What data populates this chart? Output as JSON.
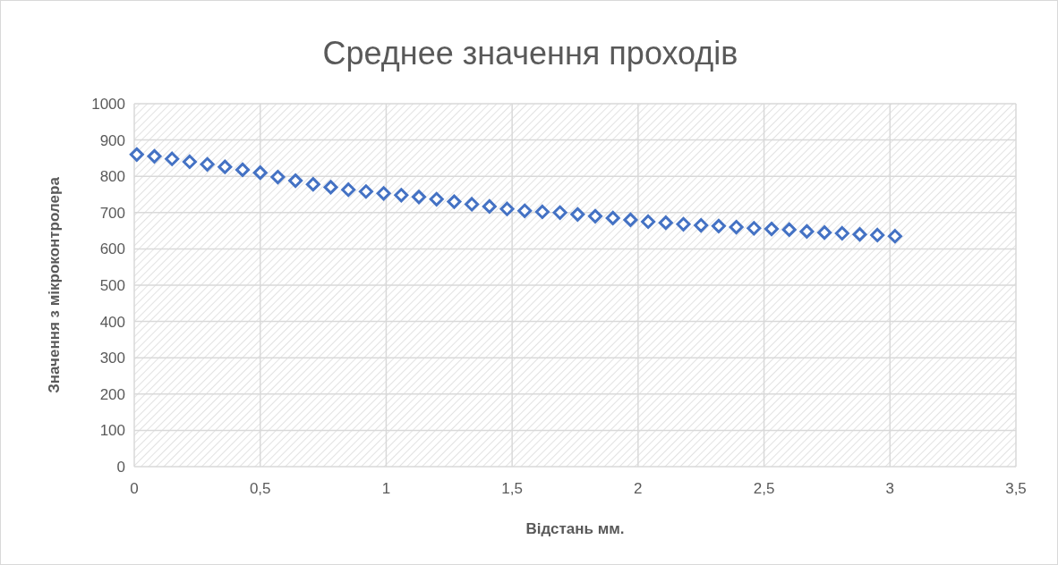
{
  "chart_data": {
    "type": "scatter",
    "title": "Среднее значення проходів",
    "xlabel": "Відстань мм.",
    "ylabel": "Значення з мікроконтролера",
    "x": [
      0.01,
      0.08,
      0.15,
      0.22,
      0.29,
      0.36,
      0.43,
      0.5,
      0.57,
      0.64,
      0.71,
      0.78,
      0.85,
      0.92,
      0.99,
      1.06,
      1.13,
      1.2,
      1.27,
      1.34,
      1.41,
      1.48,
      1.55,
      1.62,
      1.69,
      1.76,
      1.83,
      1.9,
      1.97,
      2.04,
      2.11,
      2.18,
      2.25,
      2.32,
      2.39,
      2.46,
      2.53,
      2.6,
      2.67,
      2.74,
      2.81,
      2.88,
      2.95,
      3.02
    ],
    "values": [
      860,
      855,
      848,
      840,
      833,
      826,
      818,
      810,
      798,
      788,
      778,
      770,
      763,
      758,
      753,
      748,
      743,
      737,
      730,
      723,
      717,
      710,
      705,
      702,
      700,
      695,
      690,
      685,
      680,
      675,
      672,
      668,
      665,
      663,
      660,
      657,
      655,
      653,
      648,
      645,
      643,
      640,
      638,
      635
    ],
    "color": "#4472c4",
    "marker": "diamond",
    "grid": true,
    "xlim": [
      0,
      3.5
    ],
    "xticks": [
      0,
      {
        "value": 0.5,
        "label": "0,5"
      },
      1,
      {
        "value": 1.5,
        "label": "1,5"
      },
      2,
      {
        "value": 2.5,
        "label": "2,5"
      },
      3,
      {
        "value": 3.5,
        "label": "3,5"
      }
    ],
    "ylim": [
      0,
      1000
    ],
    "yticks": [
      0,
      100,
      200,
      300,
      400,
      500,
      600,
      700,
      800,
      900,
      1000
    ]
  }
}
